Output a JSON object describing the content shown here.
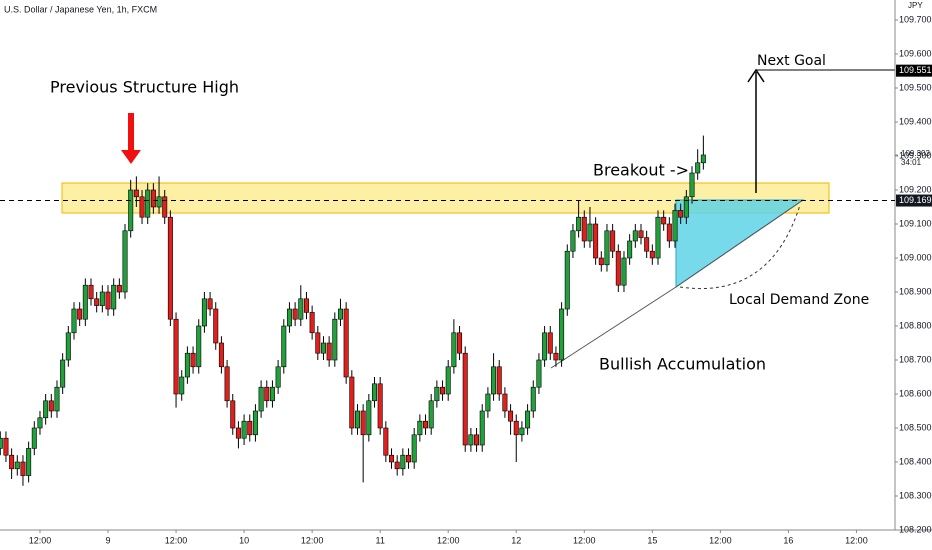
{
  "chart_data": {
    "type": "candlestick",
    "title": "U.S. Dollar / Japanese Yen, 1h, FXCM",
    "currency": "JPY",
    "annotations": {
      "structure_high": "Previous Structure High",
      "breakout": "Breakout ->",
      "next_goal": "Next Goal",
      "demand": "Local Demand Zone",
      "accumulation": "Bullish Accumulation"
    },
    "up_color": "#22a03c",
    "down_color": "#e0201c",
    "ylim": [
      108.2,
      109.7
    ],
    "yticks": [
      {
        "value": 108.2,
        "label": "108.200"
      },
      {
        "value": 108.3,
        "label": "108.300"
      },
      {
        "value": 108.4,
        "label": "108.400"
      },
      {
        "value": 108.5,
        "label": "108.500"
      },
      {
        "value": 108.6,
        "label": "108.600"
      },
      {
        "value": 108.7,
        "label": "108.700"
      },
      {
        "value": 108.8,
        "label": "108.800"
      },
      {
        "value": 108.9,
        "label": "108.900"
      },
      {
        "value": 109.0,
        "label": "109.000"
      },
      {
        "value": 109.1,
        "label": "109.100"
      },
      {
        "value": 109.2,
        "label": "109.200"
      },
      {
        "value": 109.3,
        "label": "109.300"
      },
      {
        "value": 109.4,
        "label": "109.400"
      },
      {
        "value": 109.5,
        "label": "109.500"
      },
      {
        "value": 109.6,
        "label": "109.600"
      },
      {
        "value": 109.7,
        "label": "109.700"
      }
    ],
    "xlim": [
      -7.05,
      150.8
    ],
    "xticks": [
      {
        "value": 0,
        "label": "12:00"
      },
      {
        "value": 12,
        "label": "9"
      },
      {
        "value": 24,
        "label": "12:00"
      },
      {
        "value": 36,
        "label": "10"
      },
      {
        "value": 48,
        "label": "12:00"
      },
      {
        "value": 60,
        "label": "11"
      },
      {
        "value": 72,
        "label": "12:00"
      },
      {
        "value": 84,
        "label": "12"
      },
      {
        "value": 96,
        "label": "12:00"
      },
      {
        "value": 108,
        "label": "15"
      },
      {
        "value": 120,
        "label": "12:00"
      },
      {
        "value": 132,
        "label": "16"
      },
      {
        "value": 144,
        "label": "12:00"
      }
    ],
    "last_price": 109.303,
    "countdown": "34:01",
    "target": 109.551,
    "level": 109.169,
    "x": [
      -7,
      -6,
      -5,
      -4,
      -3,
      -2,
      -1,
      0,
      1,
      2,
      3,
      4,
      5,
      6,
      7,
      8,
      9,
      10,
      11,
      12,
      13,
      14,
      15,
      16,
      17,
      18,
      19,
      20,
      21,
      22,
      23,
      24,
      25,
      26,
      27,
      28,
      29,
      30,
      31,
      32,
      33,
      34,
      35,
      36,
      37,
      38,
      39,
      40,
      41,
      42,
      43,
      44,
      45,
      46,
      47,
      48,
      49,
      50,
      51,
      52,
      53,
      54,
      55,
      56,
      57,
      58,
      59,
      60,
      61,
      62,
      63,
      64,
      65,
      66,
      67,
      68,
      69,
      70,
      71,
      72,
      73,
      74,
      75,
      76,
      77,
      78,
      79,
      80,
      81,
      82,
      83,
      84,
      85,
      86,
      87,
      88,
      89,
      90,
      91,
      92,
      93,
      94,
      95,
      96,
      97,
      98,
      99,
      100,
      101,
      102,
      103,
      104,
      105,
      106,
      107,
      108,
      109,
      110,
      111,
      112,
      113,
      114,
      115,
      116,
      117
    ],
    "ohlc": [
      [
        108.44,
        108.49,
        108.42,
        108.47
      ],
      [
        108.47,
        108.49,
        108.4,
        108.42
      ],
      [
        108.42,
        108.44,
        108.35,
        108.38
      ],
      [
        108.38,
        108.42,
        108.36,
        108.4
      ],
      [
        108.4,
        108.42,
        108.33,
        108.36
      ],
      [
        108.36,
        108.46,
        108.34,
        108.44
      ],
      [
        108.44,
        108.52,
        108.42,
        108.5
      ],
      [
        108.5,
        108.55,
        108.48,
        108.53
      ],
      [
        108.53,
        108.6,
        108.51,
        108.58
      ],
      [
        108.58,
        108.6,
        108.53,
        108.55
      ],
      [
        108.55,
        108.64,
        108.53,
        108.62
      ],
      [
        108.62,
        108.72,
        108.6,
        108.7
      ],
      [
        108.7,
        108.8,
        108.68,
        108.78
      ],
      [
        108.78,
        108.87,
        108.76,
        108.85
      ],
      [
        108.85,
        108.87,
        108.8,
        108.82
      ],
      [
        108.82,
        108.94,
        108.8,
        108.92
      ],
      [
        108.92,
        108.94,
        108.86,
        108.88
      ],
      [
        108.88,
        108.9,
        108.84,
        108.86
      ],
      [
        108.86,
        108.92,
        108.84,
        108.9
      ],
      [
        108.9,
        108.92,
        108.83,
        108.85
      ],
      [
        108.85,
        108.94,
        108.83,
        108.92
      ],
      [
        108.92,
        108.94,
        108.88,
        108.9
      ],
      [
        108.9,
        109.1,
        108.88,
        109.08
      ],
      [
        109.08,
        109.23,
        109.06,
        109.2
      ],
      [
        109.2,
        109.24,
        109.15,
        109.18
      ],
      [
        109.18,
        109.2,
        109.1,
        109.12
      ],
      [
        109.12,
        109.22,
        109.1,
        109.2
      ],
      [
        109.2,
        109.22,
        109.13,
        109.15
      ],
      [
        109.15,
        109.24,
        109.13,
        109.18
      ],
      [
        109.18,
        109.2,
        109.1,
        109.12
      ],
      [
        109.12,
        109.14,
        108.8,
        108.82
      ],
      [
        108.82,
        108.84,
        108.56,
        108.6
      ],
      [
        108.6,
        108.67,
        108.58,
        108.65
      ],
      [
        108.65,
        108.74,
        108.63,
        108.72
      ],
      [
        108.72,
        108.74,
        108.66,
        108.68
      ],
      [
        108.68,
        108.82,
        108.66,
        108.8
      ],
      [
        108.8,
        108.9,
        108.78,
        108.88
      ],
      [
        108.88,
        108.9,
        108.83,
        108.85
      ],
      [
        108.85,
        108.87,
        108.73,
        108.75
      ],
      [
        108.75,
        108.77,
        108.66,
        108.68
      ],
      [
        108.68,
        108.7,
        108.56,
        108.58
      ],
      [
        108.58,
        108.6,
        108.48,
        108.5
      ],
      [
        108.5,
        108.52,
        108.44,
        108.47
      ],
      [
        108.47,
        108.54,
        108.45,
        108.52
      ],
      [
        108.52,
        108.54,
        108.46,
        108.48
      ],
      [
        108.48,
        108.57,
        108.46,
        108.55
      ],
      [
        108.55,
        108.64,
        108.53,
        108.62
      ],
      [
        108.62,
        108.64,
        108.56,
        108.58
      ],
      [
        108.58,
        108.64,
        108.56,
        108.62
      ],
      [
        108.62,
        108.7,
        108.6,
        108.68
      ],
      [
        108.68,
        108.82,
        108.66,
        108.8
      ],
      [
        108.8,
        108.87,
        108.78,
        108.85
      ],
      [
        108.85,
        108.87,
        108.8,
        108.82
      ],
      [
        108.82,
        108.92,
        108.8,
        108.88
      ],
      [
        108.88,
        108.9,
        108.82,
        108.84
      ],
      [
        108.84,
        108.86,
        108.76,
        108.78
      ],
      [
        108.78,
        108.8,
        108.7,
        108.72
      ],
      [
        108.72,
        108.77,
        108.7,
        108.75
      ],
      [
        108.75,
        108.77,
        108.68,
        108.7
      ],
      [
        108.7,
        108.84,
        108.68,
        108.82
      ],
      [
        108.82,
        108.88,
        108.8,
        108.85
      ],
      [
        108.85,
        108.87,
        108.63,
        108.65
      ],
      [
        108.65,
        108.67,
        108.48,
        108.5
      ],
      [
        108.5,
        108.57,
        108.48,
        108.55
      ],
      [
        108.55,
        108.57,
        108.34,
        108.48
      ],
      [
        108.48,
        108.6,
        108.46,
        108.58
      ],
      [
        108.58,
        108.65,
        108.56,
        108.63
      ],
      [
        108.63,
        108.65,
        108.48,
        108.5
      ],
      [
        108.5,
        108.52,
        108.4,
        108.42
      ],
      [
        108.42,
        108.44,
        108.38,
        108.4
      ],
      [
        108.4,
        108.42,
        108.36,
        108.38
      ],
      [
        108.38,
        108.44,
        108.36,
        108.42
      ],
      [
        108.42,
        108.44,
        108.38,
        108.4
      ],
      [
        108.4,
        108.5,
        108.38,
        108.48
      ],
      [
        108.48,
        108.54,
        108.46,
        108.52
      ],
      [
        108.52,
        108.54,
        108.48,
        108.5
      ],
      [
        108.5,
        108.6,
        108.48,
        108.58
      ],
      [
        108.58,
        108.64,
        108.56,
        108.62
      ],
      [
        108.62,
        108.64,
        108.58,
        108.6
      ],
      [
        108.6,
        108.7,
        108.58,
        108.68
      ],
      [
        108.68,
        108.82,
        108.66,
        108.78
      ],
      [
        108.78,
        108.8,
        108.7,
        108.72
      ],
      [
        108.72,
        108.74,
        108.43,
        108.45
      ],
      [
        108.45,
        108.5,
        108.43,
        108.48
      ],
      [
        108.48,
        108.5,
        108.43,
        108.45
      ],
      [
        108.45,
        108.57,
        108.43,
        108.55
      ],
      [
        108.55,
        108.62,
        108.53,
        108.6
      ],
      [
        108.6,
        108.72,
        108.58,
        108.68
      ],
      [
        108.68,
        108.7,
        108.58,
        108.6
      ],
      [
        108.6,
        108.62,
        108.53,
        108.55
      ],
      [
        108.55,
        108.57,
        108.48,
        108.52
      ],
      [
        108.52,
        108.54,
        108.4,
        108.48
      ],
      [
        108.48,
        108.52,
        108.46,
        108.5
      ],
      [
        108.5,
        108.57,
        108.48,
        108.55
      ],
      [
        108.55,
        108.64,
        108.53,
        108.62
      ],
      [
        108.62,
        108.72,
        108.6,
        108.7
      ],
      [
        108.7,
        108.8,
        108.68,
        108.78
      ],
      [
        108.78,
        108.8,
        108.7,
        108.72
      ],
      [
        108.72,
        108.74,
        108.68,
        108.7
      ],
      [
        108.7,
        108.87,
        108.68,
        108.85
      ],
      [
        108.85,
        109.04,
        108.83,
        109.02
      ],
      [
        109.02,
        109.1,
        109.0,
        109.08
      ],
      [
        109.08,
        109.17,
        109.06,
        109.12
      ],
      [
        109.12,
        109.14,
        109.03,
        109.05
      ],
      [
        109.05,
        109.15,
        109.03,
        109.1
      ],
      [
        109.1,
        109.12,
        108.98,
        109.0
      ],
      [
        109.0,
        109.02,
        108.96,
        108.98
      ],
      [
        108.98,
        109.1,
        108.96,
        109.08
      ],
      [
        109.08,
        109.1,
        109.0,
        109.02
      ],
      [
        109.02,
        109.04,
        108.9,
        108.92
      ],
      [
        108.92,
        109.02,
        108.9,
        109.0
      ],
      [
        109.0,
        109.07,
        108.98,
        109.05
      ],
      [
        109.05,
        109.1,
        109.03,
        109.08
      ],
      [
        109.08,
        109.1,
        109.04,
        109.06
      ],
      [
        109.06,
        109.08,
        109.0,
        109.02
      ],
      [
        109.02,
        109.04,
        108.98,
        109.0
      ],
      [
        109.0,
        109.14,
        108.98,
        109.12
      ],
      [
        109.12,
        109.14,
        109.08,
        109.1
      ],
      [
        109.1,
        109.12,
        109.03,
        109.05
      ],
      [
        109.05,
        109.16,
        109.03,
        109.14
      ],
      [
        109.14,
        109.16,
        109.1,
        109.12
      ],
      [
        109.12,
        109.2,
        109.1,
        109.18
      ],
      [
        109.18,
        109.27,
        109.16,
        109.25
      ],
      [
        109.25,
        109.32,
        109.23,
        109.28
      ],
      [
        109.28,
        109.36,
        109.26,
        109.303
      ]
    ]
  }
}
